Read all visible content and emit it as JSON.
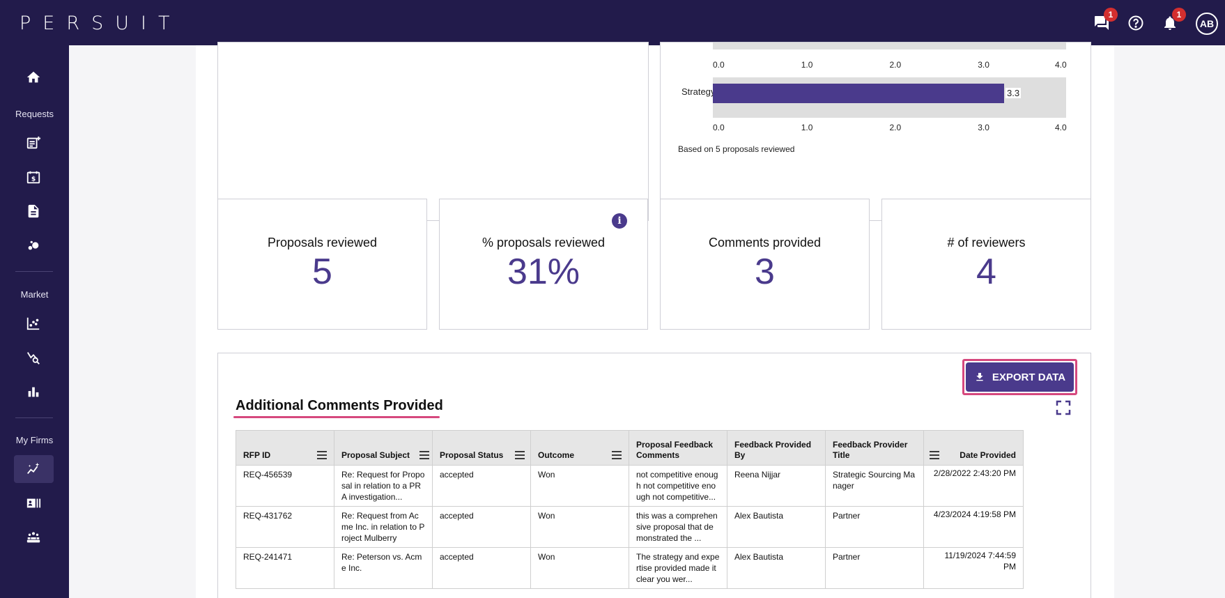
{
  "app": {
    "logo": "PERSUIT",
    "avatar_initials": "AB"
  },
  "topbar": {
    "messages_badge": "1",
    "notifications_badge": "1"
  },
  "sidebar": {
    "requests_label": "Requests",
    "market_label": "Market",
    "my_firms_label": "My Firms"
  },
  "chart_data": {
    "type": "bar",
    "orientation": "horizontal",
    "categories": [
      "Strategy"
    ],
    "values": [
      3.3
    ],
    "xlim": [
      0,
      4.0
    ],
    "xticks": [
      "0.0",
      "1.0",
      "2.0",
      "3.0",
      "4.0"
    ],
    "footnote": "Based on 5 proposals reviewed",
    "bar_color": "#4a3a8c"
  },
  "stats": [
    {
      "label": "Proposals reviewed",
      "value": "5"
    },
    {
      "label": "% proposals reviewed",
      "value": "31%"
    },
    {
      "label": "Comments provided",
      "value": "3"
    },
    {
      "label": "# of reviewers",
      "value": "4"
    }
  ],
  "comments_section": {
    "title": "Additional Comments Provided",
    "export_label": "EXPORT DATA",
    "columns": [
      "RFP ID",
      "Proposal Subject",
      "Proposal Status",
      "Outcome",
      "Proposal Feedback Comments",
      "Feedback Provided By",
      "Feedback Provider Title",
      "Date Provided"
    ],
    "rows": [
      [
        "REQ-456539",
        "Re: Request for Proposal in relation to a PRA investigation...",
        "accepted",
        "Won",
        "not competitive enough not competitive enough not competitive...",
        "Reena Nijjar",
        "Strategic Sourcing Manager",
        "2/28/2022 2:43:20 PM"
      ],
      [
        "REQ-431762",
        "Re: Request from Acme Inc. in relation to Project Mulberry",
        "accepted",
        "Won",
        "this was a comprehensive proposal that demonstrated the ...",
        "Alex Bautista",
        "Partner",
        "4/23/2024 4:19:58 PM"
      ],
      [
        "REQ-241471",
        "Re: Peterson vs. Acme Inc.",
        "accepted",
        "Won",
        "The strategy and expertise provided made it clear you wer...",
        "Alex Bautista",
        "Partner",
        "11/19/2024 7:44:59 PM"
      ]
    ]
  },
  "colors": {
    "nav_bg": "#221b4b",
    "accent": "#4a3a8c",
    "highlight": "#d6487e"
  }
}
